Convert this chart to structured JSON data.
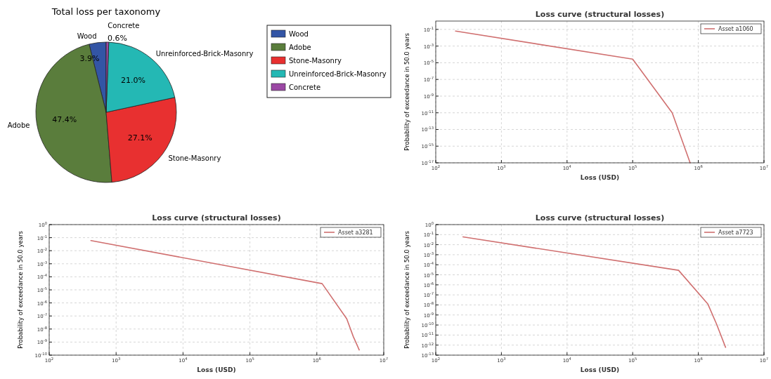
{
  "chart_data": [
    {
      "type": "pie",
      "title": "Total loss per taxonomy",
      "categories": [
        "Wood",
        "Adobe",
        "Stone-Masonry",
        "Unreinforced-Brick-Masonry",
        "Concrete"
      ],
      "values": [
        3.9,
        47.4,
        27.1,
        21.0,
        0.6
      ],
      "value_labels": [
        "3.9%",
        "47.4%",
        "27.1%",
        "21.0%",
        "0.6%"
      ],
      "colors": [
        "#3355a5",
        "#5a7d3c",
        "#e83030",
        "#24b8b4",
        "#9b48a4"
      ],
      "legend": "right"
    },
    {
      "type": "line",
      "title": "Loss curve (structural losses)",
      "xlabel": "Loss (USD)",
      "ylabel": "Probability of exceedance in 50.0 years",
      "log": "xy",
      "grid": true,
      "legend": "top right",
      "xlim": [
        100,
        10000000
      ],
      "xticks": [
        {
          "value": 100,
          "label": "10$^{2}$"
        },
        {
          "value": 1000,
          "label": "10$^{3}$"
        },
        {
          "value": 10000,
          "label": "10$^{4}$"
        },
        {
          "value": 100000,
          "label": "10$^{5}$"
        },
        {
          "value": 1000000,
          "label": "10$^{6}$"
        },
        {
          "value": 10000000,
          "label": "10$^{7}$"
        }
      ],
      "ylim": [
        1e-17,
        1
      ],
      "yticks": [
        {
          "value": 0.1,
          "label": "10$^{-1}$"
        },
        {
          "value": 0.001,
          "label": "10$^{-3}$"
        },
        {
          "value": 1e-05,
          "label": "10$^{-5}$"
        },
        {
          "value": 1e-07,
          "label": "10$^{-7}$"
        },
        {
          "value": 1e-09,
          "label": "10$^{-9}$"
        },
        {
          "value": 1e-11,
          "label": "10$^{-11}$"
        },
        {
          "value": 1e-13,
          "label": "10$^{-13}$"
        },
        {
          "value": 1e-15,
          "label": "10$^{-15}$"
        },
        {
          "value": 1e-17,
          "label": "10$^{-17}$"
        }
      ],
      "series": [
        {
          "name": "Asset a1060",
          "color": "#d07070",
          "x": [
            200,
            100000,
            400000,
            750000
          ],
          "values": [
            0.063,
            2.7e-05,
            1e-11,
            1e-17
          ]
        }
      ]
    },
    {
      "type": "line",
      "title": "Loss curve (structural losses)",
      "xlabel": "Loss (USD)",
      "ylabel": "Probability of exceedance in 50.0 years",
      "log": "xy",
      "grid": true,
      "legend": "top right",
      "xlim": [
        100,
        10000000
      ],
      "xticks": [
        {
          "value": 100,
          "label": "10$^{2}$"
        },
        {
          "value": 1000,
          "label": "10$^{3}$"
        },
        {
          "value": 10000,
          "label": "10$^{4}$"
        },
        {
          "value": 100000,
          "label": "10$^{5}$"
        },
        {
          "value": 1000000,
          "label": "10$^{6}$"
        },
        {
          "value": 10000000,
          "label": "10$^{7}$"
        }
      ],
      "ylim": [
        1e-10,
        1
      ],
      "yticks": [
        {
          "value": 1,
          "label": "10$^{0}$"
        },
        {
          "value": 0.1,
          "label": "10$^{-1}$"
        },
        {
          "value": 0.01,
          "label": "10$^{-2}$"
        },
        {
          "value": 0.001,
          "label": "10$^{-3}$"
        },
        {
          "value": 0.0001,
          "label": "10$^{-4}$"
        },
        {
          "value": 1e-05,
          "label": "10$^{-5}$"
        },
        {
          "value": 1e-06,
          "label": "10$^{-6}$"
        },
        {
          "value": 1e-07,
          "label": "10$^{-7}$"
        },
        {
          "value": 1e-08,
          "label": "10$^{-8}$"
        },
        {
          "value": 1e-09,
          "label": "10$^{-9}$"
        },
        {
          "value": 1e-10,
          "label": "10$^{-10}$"
        }
      ],
      "series": [
        {
          "name": "Asset a3281",
          "color": "#d07070",
          "x": [
            420,
            1200000,
            2800000,
            3500000,
            4300000
          ],
          "values": [
            0.06,
            3e-05,
            6e-08,
            2.7e-09,
            2.5e-10
          ]
        }
      ]
    },
    {
      "type": "line",
      "title": "Loss curve (structural losses)",
      "xlabel": "Loss (USD)",
      "ylabel": "Probability of exceedance in 50.0 years",
      "log": "xy",
      "grid": true,
      "legend": "top right",
      "xlim": [
        100,
        10000000
      ],
      "xticks": [
        {
          "value": 100,
          "label": "10$^{2}$"
        },
        {
          "value": 1000,
          "label": "10$^{3}$"
        },
        {
          "value": 10000,
          "label": "10$^{4}$"
        },
        {
          "value": 100000,
          "label": "10$^{5}$"
        },
        {
          "value": 1000000,
          "label": "10$^{6}$"
        },
        {
          "value": 10000000,
          "label": "10$^{7}$"
        }
      ],
      "ylim": [
        1e-13,
        1
      ],
      "yticks": [
        {
          "value": 1,
          "label": "10$^{0}$"
        },
        {
          "value": 0.1,
          "label": "10$^{-1}$"
        },
        {
          "value": 0.01,
          "label": "10$^{-2}$"
        },
        {
          "value": 0.001,
          "label": "10$^{-3}$"
        },
        {
          "value": 0.0001,
          "label": "10$^{-4}$"
        },
        {
          "value": 1e-05,
          "label": "10$^{-5}$"
        },
        {
          "value": 1e-06,
          "label": "10$^{-6}$"
        },
        {
          "value": 1e-07,
          "label": "10$^{-7}$"
        },
        {
          "value": 1e-08,
          "label": "10$^{-8}$"
        },
        {
          "value": 1e-09,
          "label": "10$^{-9}$"
        },
        {
          "value": 1e-10,
          "label": "10$^{-10}$"
        },
        {
          "value": 1e-11,
          "label": "10$^{-11}$"
        },
        {
          "value": 1e-12,
          "label": "10$^{-12}$"
        },
        {
          "value": 1e-13,
          "label": "10$^{-13}$"
        }
      ],
      "series": [
        {
          "name": "Asset a7723",
          "color": "#d07070",
          "x": [
            260,
            500000,
            1400000,
            1900000,
            2600000
          ],
          "values": [
            0.06,
            2.8e-05,
            1.2e-08,
            1.2e-10,
            6e-13
          ]
        }
      ]
    }
  ]
}
